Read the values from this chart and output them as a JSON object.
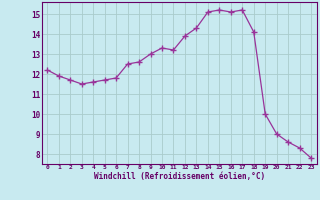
{
  "x": [
    0,
    1,
    2,
    3,
    4,
    5,
    6,
    7,
    8,
    9,
    10,
    11,
    12,
    13,
    14,
    15,
    16,
    17,
    18,
    19,
    20,
    21,
    22,
    23
  ],
  "y": [
    12.2,
    11.9,
    11.7,
    11.5,
    11.6,
    11.7,
    11.8,
    12.5,
    12.6,
    13.0,
    13.3,
    13.2,
    13.9,
    14.3,
    15.1,
    15.2,
    15.1,
    15.2,
    14.1,
    10.0,
    9.0,
    8.6,
    8.3,
    7.8
  ],
  "line_color": "#993399",
  "marker": "+",
  "bg_color": "#c8eaf0",
  "grid_color": "#aacccc",
  "xlabel": "Windchill (Refroidissement éolien,°C)",
  "xlabel_color": "#660066",
  "tick_color": "#660066",
  "xlim": [
    -0.5,
    23.5
  ],
  "ylim": [
    7.5,
    15.6
  ],
  "yticks": [
    8,
    9,
    10,
    11,
    12,
    13,
    14,
    15
  ],
  "xticks": [
    0,
    1,
    2,
    3,
    4,
    5,
    6,
    7,
    8,
    9,
    10,
    11,
    12,
    13,
    14,
    15,
    16,
    17,
    18,
    19,
    20,
    21,
    22,
    23
  ]
}
